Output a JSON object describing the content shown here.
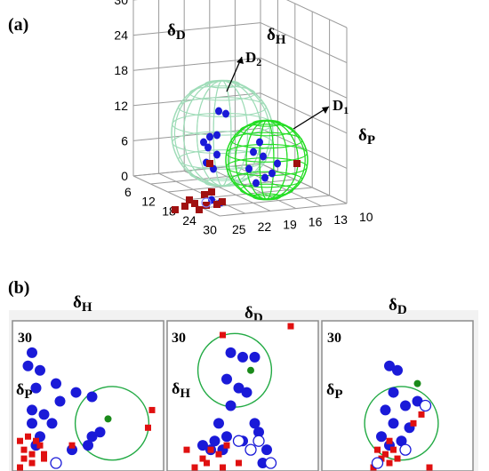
{
  "figure": {
    "panel_a_label": "(a)",
    "panel_b_label": "(b)"
  },
  "colors": {
    "solvent_good": "#1a1ad8",
    "solvent_bad": "#e01010",
    "sphere_D1": "#22dd22",
    "sphere_D2": "#9fdcb8",
    "center": "#1a8a1a",
    "panel_border": "#8c8c8c"
  },
  "chart_data": [
    {
      "type": "scatter3d",
      "panel": "(a)",
      "axis_labels": {
        "dD": "δD",
        "dH": "δH",
        "dP": "δP"
      },
      "vertical_axis": {
        "name": "δP",
        "ticks": [
          "0",
          "6",
          "12",
          "18",
          "24",
          "30"
        ],
        "range": [
          0,
          30
        ]
      },
      "left_depth_axis": {
        "name": "δD",
        "ticks": [
          "6",
          "12",
          "18",
          "24",
          "30"
        ],
        "range": [
          6,
          30
        ]
      },
      "right_depth_axis": {
        "name": "δH",
        "ticks": [
          "10",
          "13",
          "16",
          "19",
          "22",
          "25"
        ],
        "range": [
          10,
          25
        ]
      },
      "spheres": [
        {
          "name": "D2",
          "label": "D2",
          "style": "wireframe",
          "color": "#9fdcb8"
        },
        {
          "name": "D1",
          "label": "D1",
          "style": "wireframe",
          "color": "#22dd22"
        }
      ],
      "points": {
        "good_solvents_marker": "circle-blue",
        "bad_solvents_marker": "square-red"
      }
    },
    {
      "type": "scatter",
      "panel": "(b)",
      "subplots": [
        {
          "title": "δH",
          "xlabel": "",
          "ylabel": "δP",
          "ymax_label": "30",
          "circle": {
            "cx": 24,
            "cy": 10,
            "r": 8
          },
          "good": [
            [
              4,
              26
            ],
            [
              3,
              23
            ],
            [
              6,
              22
            ],
            [
              5,
              18
            ],
            [
              10,
              19
            ],
            [
              11,
              15
            ],
            [
              15,
              17
            ],
            [
              19,
              16
            ],
            [
              4,
              13
            ],
            [
              7,
              12
            ],
            [
              9,
              10
            ],
            [
              19,
              7
            ],
            [
              21,
              8
            ],
            [
              18,
              5
            ],
            [
              14,
              4
            ],
            [
              6,
              7
            ],
            [
              4,
              10
            ],
            [
              5,
              5
            ]
          ],
          "bad": [
            [
              1,
              6
            ],
            [
              2,
              4
            ],
            [
              5,
              6
            ],
            [
              6,
              5
            ],
            [
              4,
              3
            ],
            [
              3,
              7
            ],
            [
              2,
              2
            ],
            [
              7,
              3
            ],
            [
              14,
              5
            ],
            [
              34,
              13
            ],
            [
              33,
              9
            ],
            [
              1,
              0
            ],
            [
              4,
              1
            ],
            [
              7,
              2
            ]
          ],
          "open": [
            [
              10,
              1
            ]
          ],
          "center": [
            [
              23,
              11
            ]
          ]
        },
        {
          "title": "δD",
          "xlabel": "",
          "ylabel": "δH",
          "ymax_label": "30",
          "circle": {
            "cx": 16,
            "cy": 22,
            "r": 8
          },
          "good": [
            [
              15,
              26
            ],
            [
              18,
              25
            ],
            [
              21,
              25
            ],
            [
              14,
              20
            ],
            [
              17,
              18
            ],
            [
              19,
              17
            ],
            [
              15,
              14
            ],
            [
              12,
              10
            ],
            [
              21,
              10
            ],
            [
              14,
              7
            ],
            [
              18,
              6
            ],
            [
              10,
              4
            ],
            [
              24,
              4
            ],
            [
              22,
              8
            ],
            [
              13,
              4
            ],
            [
              11,
              6
            ],
            [
              8,
              5
            ],
            [
              23,
              1
            ]
          ],
          "bad": [
            [
              13,
              30
            ],
            [
              30,
              32
            ],
            [
              10,
              4
            ],
            [
              8,
              2
            ],
            [
              13,
              0
            ],
            [
              12,
              3
            ],
            [
              14,
              5
            ],
            [
              9,
              1
            ],
            [
              17,
              1
            ],
            [
              6,
              0
            ],
            [
              4,
              4
            ]
          ],
          "open": [
            [
              17,
              6
            ],
            [
              20,
              4
            ],
            [
              22,
              6
            ],
            [
              25,
              1
            ]
          ],
          "center": [
            [
              20,
              22
            ]
          ]
        },
        {
          "title": "δD",
          "xlabel": "",
          "ylabel": "δP",
          "ymax_label": "30",
          "circle": {
            "cx": 19,
            "cy": 10,
            "r": 8
          },
          "good": [
            [
              16,
              23
            ],
            [
              18,
              22
            ],
            [
              17,
              17
            ],
            [
              15,
              13
            ],
            [
              17,
              10
            ],
            [
              21,
              9
            ],
            [
              19,
              6
            ],
            [
              16,
              5
            ],
            [
              14,
              7
            ],
            [
              23,
              15
            ],
            [
              20,
              14
            ]
          ],
          "bad": [
            [
              16,
              6
            ],
            [
              17,
              4
            ],
            [
              15,
              3
            ],
            [
              14,
              2
            ],
            [
              18,
              2
            ],
            [
              13,
              4
            ],
            [
              16,
              1
            ],
            [
              22,
              10
            ],
            [
              24,
              12
            ],
            [
              12,
              0
            ],
            [
              26,
              0
            ]
          ],
          "open": [
            [
              25,
              14
            ],
            [
              20,
              4
            ],
            [
              13,
              1
            ]
          ],
          "center": [
            [
              23,
              19
            ]
          ]
        }
      ]
    }
  ]
}
